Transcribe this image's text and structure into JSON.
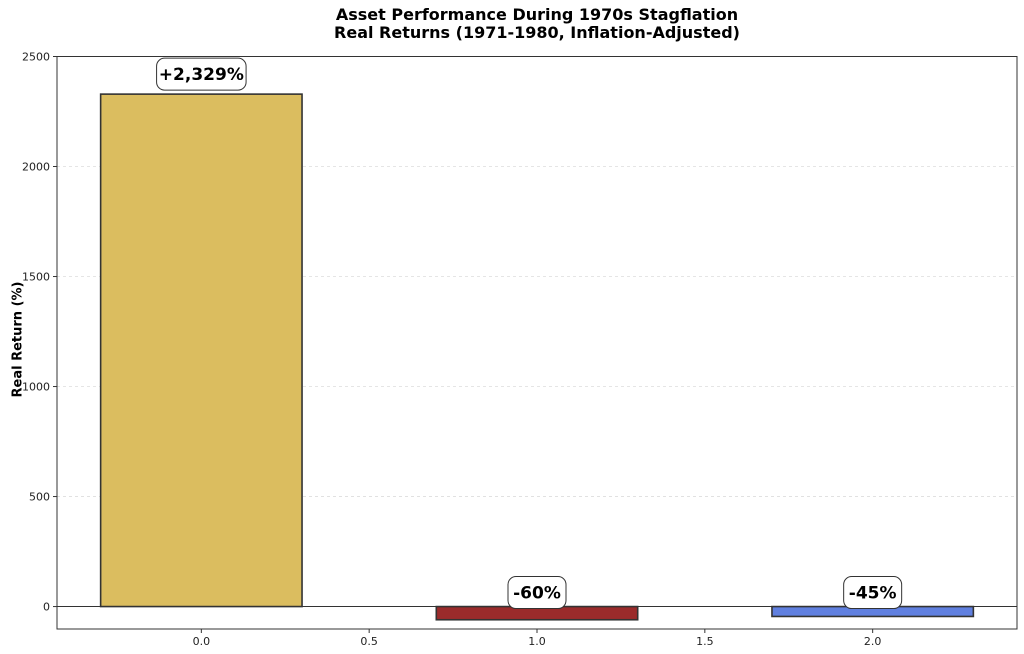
{
  "chart_data": {
    "type": "bar",
    "title": "Asset Performance During 1970s Stagflation",
    "subtitle": "Real Returns (1971-1980, Inflation-Adjusted)",
    "xlabel": "",
    "ylabel": "Real Return (%)",
    "x": [
      0.0,
      1.0,
      2.0
    ],
    "values": [
      2329,
      -60,
      -45
    ],
    "data_labels": [
      "+2,329%",
      "-60%",
      "-45%"
    ],
    "bar_colors": [
      "#dbbd5f",
      "#9b2b2b",
      "#6080e0"
    ],
    "bar_width": 0.6,
    "xlim": [
      -0.43,
      2.43
    ],
    "ylim": [
      -102,
      2500
    ],
    "xticks": [
      "0.0",
      "0.5",
      "1.0",
      "1.5",
      "2.0"
    ],
    "yticks": [
      "0",
      "500",
      "1000",
      "1500",
      "2000",
      "2500"
    ],
    "grid": "y dashed light",
    "legend": null,
    "zero_line": true
  }
}
